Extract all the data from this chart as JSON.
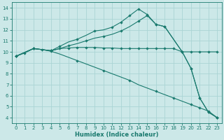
{
  "xlabel": "Humidex (Indice chaleur)",
  "xlim": [
    -0.5,
    23.5
  ],
  "ylim": [
    3.5,
    14.5
  ],
  "xticks": [
    0,
    1,
    2,
    3,
    4,
    5,
    6,
    7,
    8,
    9,
    10,
    11,
    12,
    13,
    14,
    15,
    16,
    17,
    18,
    19,
    20,
    21,
    22,
    23
  ],
  "yticks": [
    4,
    5,
    6,
    7,
    8,
    9,
    10,
    11,
    12,
    13,
    14
  ],
  "bg_color": "#cce8e8",
  "grid_color": "#aad4d4",
  "line_color": "#1a7a6e",
  "line1_x": [
    0,
    1,
    2,
    3,
    4,
    5,
    6,
    7,
    8,
    9,
    10,
    11,
    12,
    13,
    14,
    15,
    16,
    17,
    18,
    19,
    20,
    21,
    22,
    23
  ],
  "line1_y": [
    9.6,
    9.9,
    10.3,
    10.2,
    10.1,
    10.3,
    10.35,
    10.4,
    10.4,
    10.4,
    10.35,
    10.35,
    10.3,
    10.3,
    10.3,
    10.3,
    10.3,
    10.3,
    10.3,
    10.0,
    10.0,
    10.0,
    10.0,
    10.0
  ],
  "line2_x": [
    0,
    2,
    3,
    4,
    5,
    6,
    7,
    8,
    9,
    10,
    11,
    12,
    13,
    14,
    15,
    16,
    17,
    19,
    20,
    21,
    22,
    23
  ],
  "line2_y": [
    9.6,
    10.3,
    10.2,
    10.1,
    10.5,
    10.9,
    11.15,
    11.5,
    11.9,
    12.0,
    12.25,
    12.7,
    13.3,
    13.9,
    13.4,
    12.5,
    12.3,
    10.0,
    8.5,
    5.8,
    4.5,
    4.0
  ],
  "line3_x": [
    0,
    2,
    3,
    4,
    5,
    6,
    7,
    8,
    9,
    10,
    11,
    12,
    13,
    14,
    15,
    16,
    17,
    19,
    20,
    21,
    22,
    23
  ],
  "line3_y": [
    9.6,
    10.3,
    10.2,
    10.1,
    10.3,
    10.55,
    10.75,
    11.0,
    11.25,
    11.4,
    11.6,
    11.9,
    12.3,
    12.8,
    13.3,
    12.5,
    12.3,
    10.0,
    8.5,
    5.8,
    4.5,
    4.0
  ],
  "line4_x": [
    0,
    2,
    3,
    4,
    5,
    6,
    7,
    8,
    9,
    10,
    11,
    12,
    13,
    14,
    15,
    16,
    17,
    18,
    19,
    20,
    21,
    22,
    23
  ],
  "line4_y": [
    9.6,
    10.3,
    10.2,
    10.05,
    9.8,
    9.5,
    9.2,
    8.9,
    8.6,
    8.3,
    8.0,
    7.7,
    7.4,
    7.0,
    6.7,
    6.4,
    6.1,
    5.8,
    5.5,
    5.2,
    4.9,
    4.6,
    4.0
  ],
  "marker_line2_x": [
    0,
    2,
    4,
    5,
    7,
    9,
    11,
    12,
    13,
    14,
    15,
    16,
    17,
    19,
    20,
    21,
    22,
    23
  ],
  "marker_line2_y": [
    9.6,
    10.3,
    10.1,
    10.5,
    11.15,
    11.9,
    12.25,
    12.7,
    13.3,
    13.9,
    13.4,
    12.5,
    12.3,
    10.0,
    8.5,
    5.8,
    4.5,
    4.0
  ],
  "marker_line3_x": [
    0,
    2,
    4,
    6,
    8,
    10,
    12,
    14,
    15,
    16,
    17,
    19,
    20,
    21,
    22,
    23
  ],
  "marker_line3_y": [
    9.6,
    10.3,
    10.1,
    10.55,
    11.0,
    11.4,
    11.9,
    12.8,
    13.3,
    12.5,
    12.3,
    10.0,
    8.5,
    5.8,
    4.5,
    4.0
  ],
  "marker_line4_x": [
    0,
    2,
    4,
    7,
    10,
    13,
    16,
    18,
    20,
    21,
    22,
    23
  ],
  "marker_line4_y": [
    9.6,
    10.3,
    10.05,
    9.2,
    8.3,
    7.4,
    6.4,
    5.8,
    5.2,
    4.9,
    4.6,
    4.0
  ]
}
